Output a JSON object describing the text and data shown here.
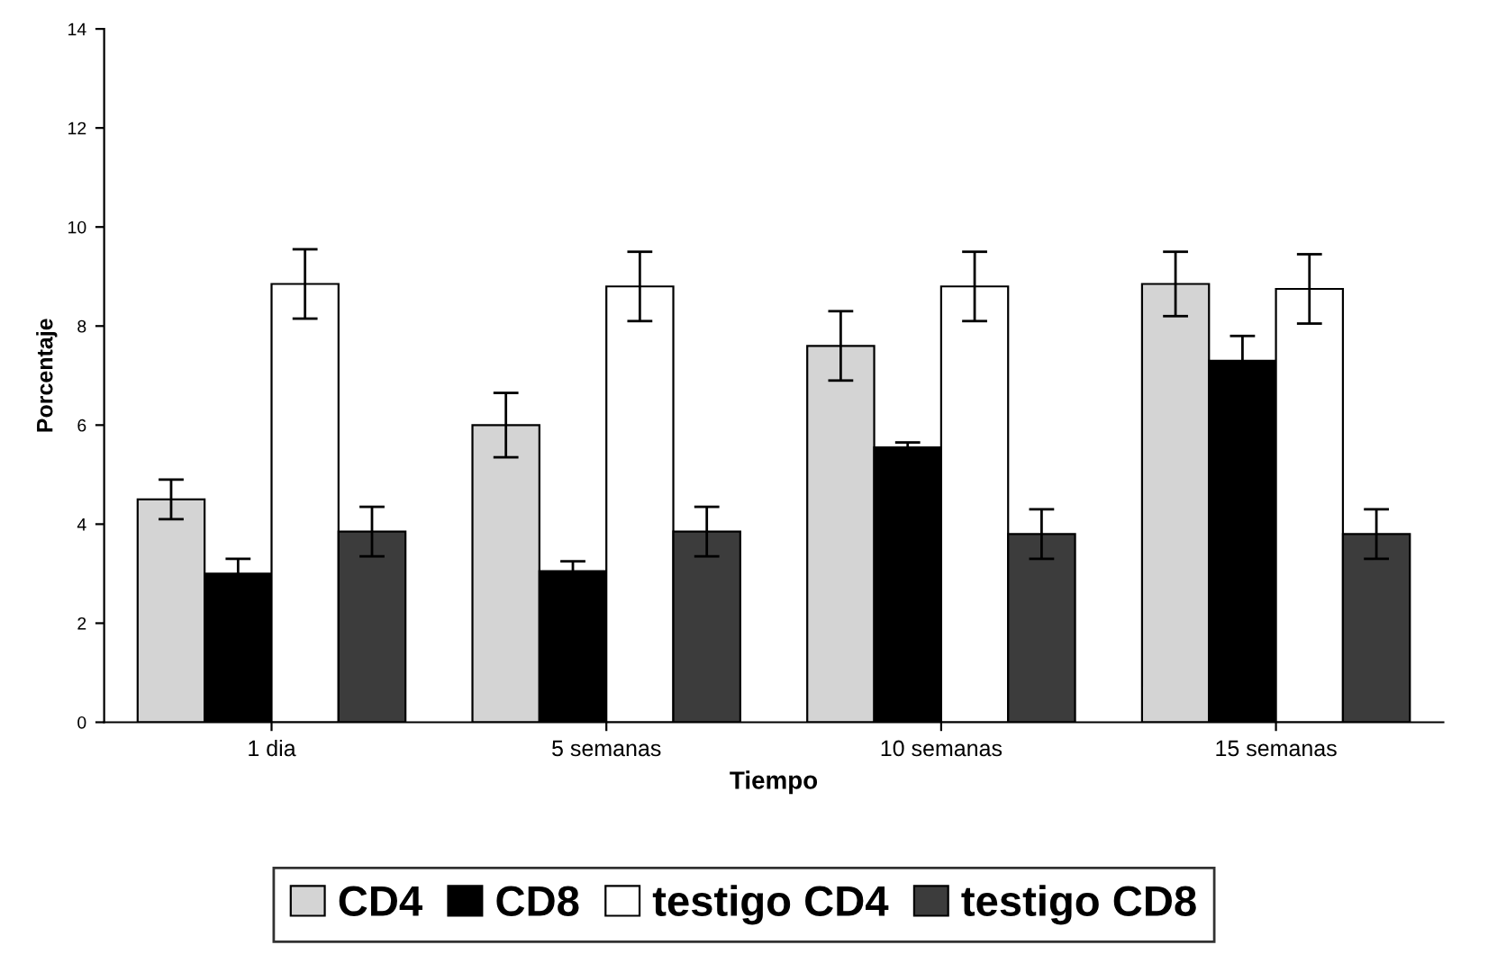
{
  "chart_data": {
    "type": "bar",
    "xlabel": "Tiempo",
    "ylabel": "Porcentaje",
    "categories": [
      "1 dia",
      "5 semanas",
      "10 semanas",
      "15 semanas"
    ],
    "series": [
      {
        "name": "CD4",
        "color": "#d4d4d4",
        "values": [
          4.5,
          6.0,
          7.6,
          8.85
        ],
        "errors": [
          0.4,
          0.65,
          0.7,
          0.65
        ]
      },
      {
        "name": "CD8",
        "color": "#000000",
        "values": [
          3.0,
          3.05,
          5.55,
          7.3
        ],
        "errors": [
          0.3,
          0.2,
          0.1,
          0.5
        ]
      },
      {
        "name": "testigo CD4",
        "color": "#ffffff",
        "values": [
          8.85,
          8.8,
          8.8,
          8.75
        ],
        "errors": [
          0.7,
          0.7,
          0.7,
          0.7
        ]
      },
      {
        "name": "testigo CD8",
        "color": "#3c3c3c",
        "values": [
          3.85,
          3.85,
          3.8,
          3.8
        ],
        "errors": [
          0.5,
          0.5,
          0.5,
          0.5
        ]
      }
    ],
    "ylim": [
      0,
      14
    ],
    "yticks": [
      0,
      2,
      4,
      6,
      8,
      10,
      12,
      14
    ],
    "grid": false,
    "legend": "bottom"
  }
}
